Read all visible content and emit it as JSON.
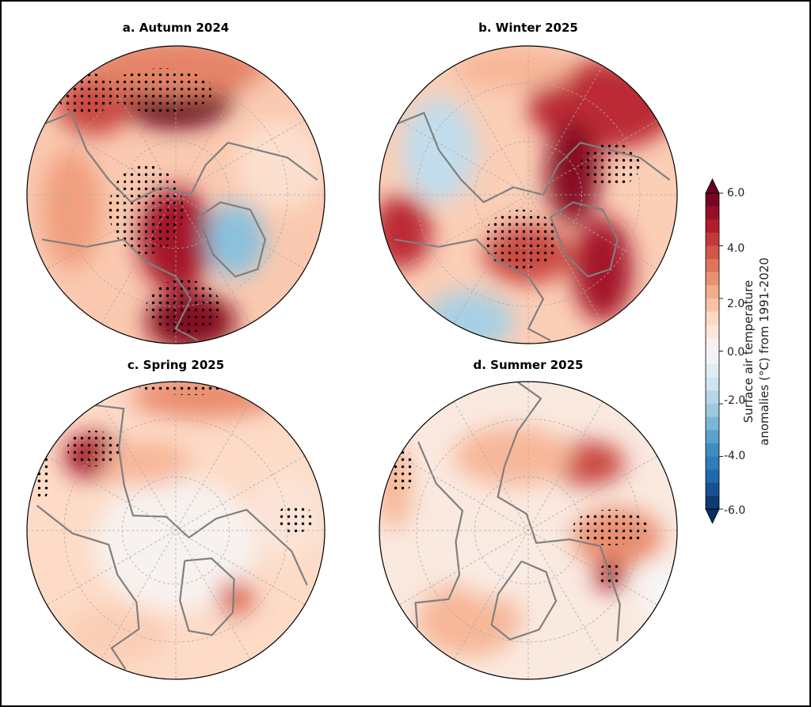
{
  "panels": [
    {
      "title": "a. Autumn 2024"
    },
    {
      "title": "b. Winter 2025"
    },
    {
      "title": "c. Spring 2025"
    },
    {
      "title": "d. Summer 2025"
    }
  ],
  "colorbar": {
    "label_line1": "Surface air temperature",
    "label_line2": "anomalies (°C) from 1991-2020",
    "min": -6.0,
    "max": 6.0,
    "step": 0.5,
    "extend": "both",
    "ticks": [
      "6.0",
      "4.0",
      "2.0",
      "0.0",
      "-2.0",
      "-4.0",
      "-6.0"
    ],
    "colormap": [
      "#053061",
      "#2166ac",
      "#4393c3",
      "#92c5de",
      "#d1e5f0",
      "#f7f7f7",
      "#fddbc7",
      "#f4a582",
      "#d6604d",
      "#b2182b",
      "#67001f"
    ]
  },
  "map_colors": {
    "coastline": "#7f7f7f",
    "graticule": "#aaaaaa",
    "stipple": "#000000"
  }
}
